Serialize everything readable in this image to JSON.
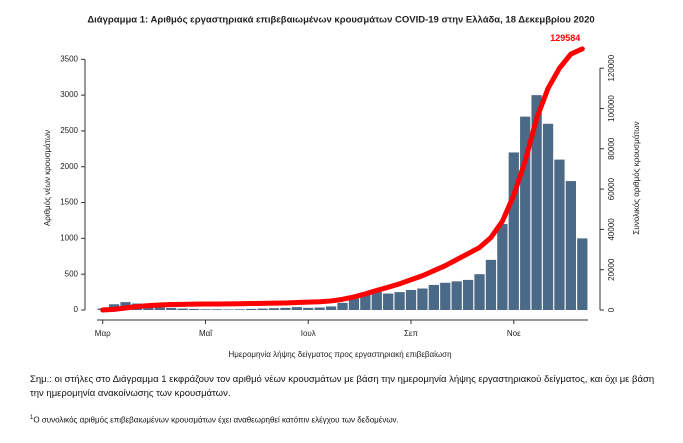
{
  "chart_data": {
    "type": "bar-line",
    "title": "Διάγραμμα 1: Αριθμός εργαστηριακά επιβεβαιωμένων κρουσμάτων COVID-19 στην Ελλάδα, 18 Δεκεμβρίου 2020",
    "x_label": "Ημερομηνία λήψης δείγματος προς εργαστηριακή επιβεβαίωση",
    "y_label": "Αριθμός νέων κρουσμάτων",
    "y2_label": "Συνολικός αριθμός κρουσμάτων",
    "categories": [
      "Μαρ",
      null,
      null,
      null,
      null,
      null,
      null,
      null,
      null,
      "Μαΐ",
      null,
      null,
      null,
      null,
      null,
      null,
      null,
      null,
      "Ιουλ",
      null,
      null,
      null,
      null,
      null,
      null,
      null,
      null,
      "Σεπ",
      null,
      null,
      null,
      null,
      null,
      null,
      null,
      null,
      "Νοε",
      null,
      null,
      null,
      null,
      null,
      null
    ],
    "series": [
      {
        "name": "Νέα κρούσματα",
        "type": "bar",
        "color": "#4b6a88",
        "values": [
          20,
          80,
          110,
          90,
          70,
          40,
          30,
          20,
          15,
          10,
          10,
          8,
          10,
          15,
          20,
          25,
          30,
          40,
          30,
          35,
          50,
          100,
          180,
          220,
          250,
          230,
          250,
          280,
          300,
          350,
          380,
          400,
          420,
          500,
          700,
          1200,
          2200,
          2700,
          3000,
          2600,
          2100,
          1800,
          1000
        ]
      },
      {
        "name": "Συνολικά κρούσματα",
        "type": "line",
        "axis": "y2",
        "color": "#ff0000",
        "values": [
          10,
          300,
          1000,
          1700,
          2200,
          2500,
          2700,
          2800,
          2900,
          2950,
          3000,
          3050,
          3100,
          3200,
          3300,
          3400,
          3500,
          3700,
          3900,
          4100,
          4500,
          5300,
          6500,
          8000,
          9700,
          11300,
          13000,
          15000,
          17000,
          19500,
          22000,
          25000,
          28000,
          31000,
          36000,
          44000,
          57000,
          74000,
          95000,
          110000,
          120000,
          127000,
          129584
        ]
      }
    ],
    "end_label": "129584",
    "ylim": [
      0,
      3700
    ],
    "yticks": [
      0,
      500,
      1000,
      1500,
      2000,
      2500,
      3000,
      3500
    ],
    "y2lim": [
      0,
      131500
    ],
    "y2ticks": [
      0,
      20000,
      40000,
      60000,
      80000,
      100000,
      120000
    ]
  },
  "note": "Σημ.: οι στήλες στο Διάγραμμα 1 εκφράζουν τον αριθμό νέων κρουσμάτων με βάση την ημερομηνία λήψης εργαστηριακού δείγματος, και όχι με βάση την ημερομηνία ανακοίνωσης των κρουσμάτων.",
  "footnote": {
    "marker": "1",
    "text": "Ο συνολικός αριθμός επιβεβαιωμένων κρουσμάτων έχει αναθεωρηθεί κατόπιν ελέγχου των δεδομένων."
  }
}
